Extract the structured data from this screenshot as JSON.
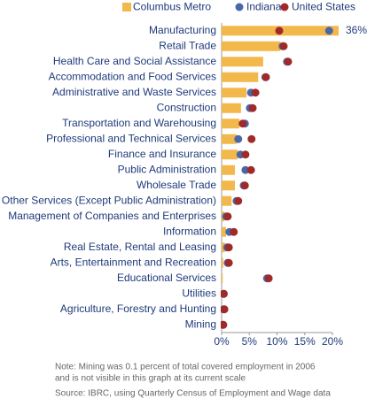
{
  "chart_data": {
    "type": "bar-dot",
    "categories": [
      "Manufacturing",
      "Retail Trade",
      "Health Care and Social Assistance",
      "Accommodation and Food Services",
      "Administrative and Waste Services",
      "Construction",
      "Transportation and Warehousing",
      "Professional and Technical Services",
      "Finance and Insurance",
      "Public Administration",
      "Wholesale Trade",
      "Other Services (Except Public Administration)",
      "Management of Companies and Enterprises",
      "Information",
      "Real Estate, Rental and Leasing",
      "Arts, Entertainment and Recreation",
      "Educational Services",
      "Utilities",
      "Agriculture, Forestry and Hunting",
      "Mining"
    ],
    "series": [
      {
        "name": "Columbus Metro",
        "color": "#f2b84b",
        "mark": "bar",
        "values": [
          36,
          10.6,
          7.5,
          6.6,
          4.5,
          3.5,
          3.2,
          2.7,
          2.9,
          2.4,
          2.4,
          1.8,
          0.5,
          0.8,
          0.6,
          0.3,
          0.2,
          0.1,
          0.1,
          0.1
        ],
        "value_labels": [
          "36%",
          null,
          null,
          null,
          null,
          null,
          null,
          null,
          null,
          null,
          null,
          null,
          null,
          null,
          null,
          null,
          null,
          null,
          null,
          null
        ]
      },
      {
        "name": "Indiana",
        "color": "#4a67a8",
        "mark": "dot",
        "values": [
          19.4,
          11.0,
          11.8,
          7.9,
          5.3,
          5.1,
          4.2,
          3.0,
          3.4,
          4.3,
          4.0,
          2.7,
          0.8,
          1.4,
          1.0,
          1.1,
          8.2,
          0.3,
          0.3,
          0.2
        ]
      },
      {
        "name": "United States",
        "color": "#a02a2a",
        "mark": "dot",
        "values": [
          10.4,
          11.2,
          12.0,
          8.0,
          6.1,
          5.6,
          3.8,
          5.4,
          4.3,
          5.3,
          4.2,
          3.0,
          1.1,
          2.2,
          1.3,
          1.3,
          8.5,
          0.4,
          0.5,
          0.3
        ]
      }
    ],
    "xlim": [
      0,
      20
    ],
    "xticks": [
      {
        "value": 0,
        "label": "0%"
      },
      {
        "value": 5,
        "label": "5%"
      },
      {
        "value": 10,
        "label": "10%"
      },
      {
        "value": 15,
        "label": "15%"
      },
      {
        "value": 20,
        "label": "20%"
      }
    ],
    "notes": [
      "Note: Mining was 0.1 percent of total covered employment in 2006",
      "and is not visible in this graph at its current scale"
    ],
    "source": "Source: IBRC, using Quarterly Census of Employment and Wage data"
  }
}
